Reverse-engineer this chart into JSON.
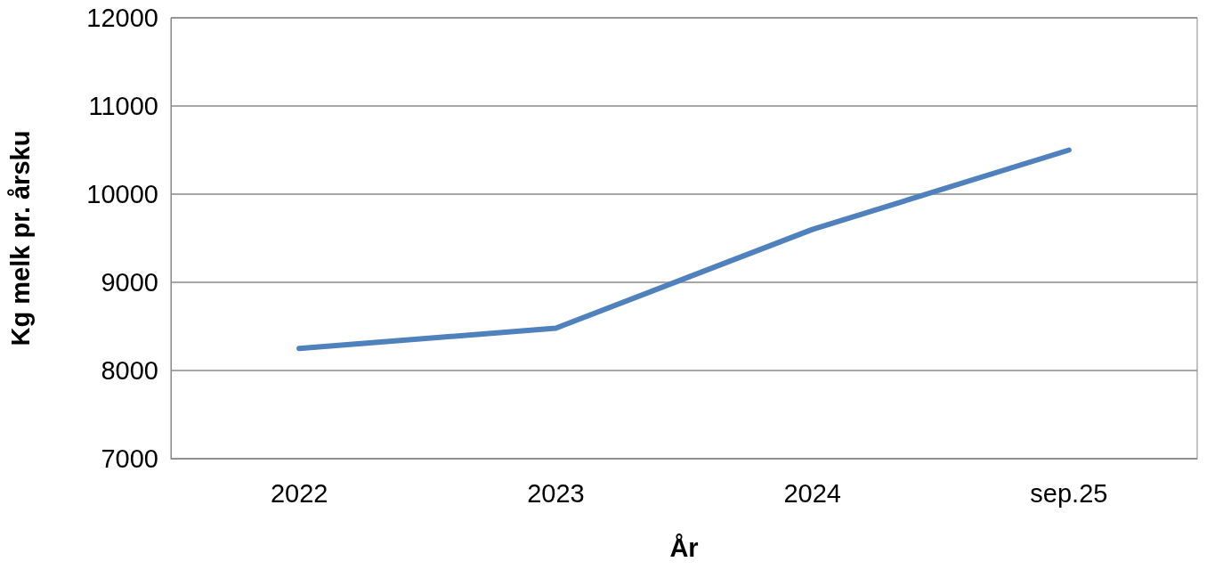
{
  "chart_data": {
    "type": "line",
    "xlabel": "År",
    "ylabel": "Kg melk pr. årsku",
    "categories": [
      "2022",
      "2023",
      "2024",
      "sep.25"
    ],
    "series": [
      {
        "color": "#4f81bd",
        "values": [
          8250,
          8480,
          9600,
          10500
        ]
      }
    ],
    "ylim": [
      7000,
      12000
    ],
    "yticks": [
      7000,
      8000,
      9000,
      10000,
      11000,
      12000
    ],
    "grid": "y",
    "marker": "none",
    "line_style": "solid"
  }
}
